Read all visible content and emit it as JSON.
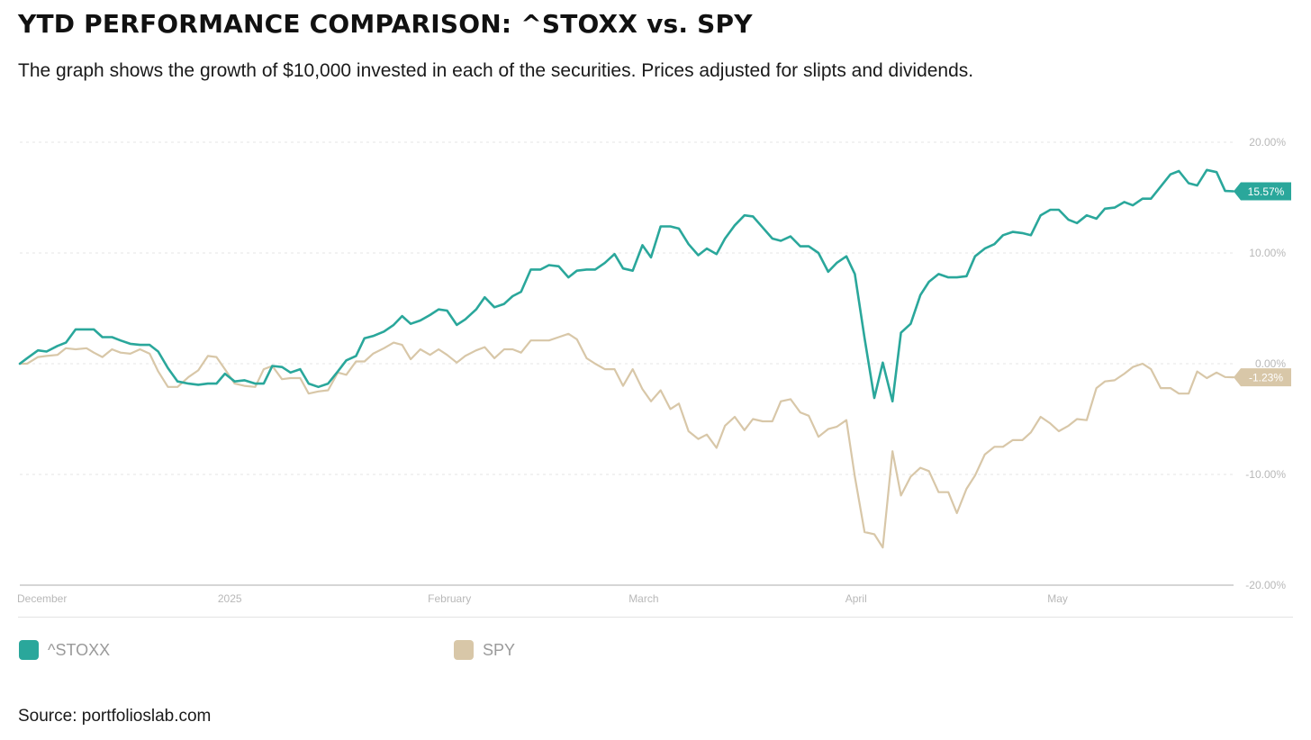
{
  "header": {
    "title": "YTD PERFORMANCE COMPARISON: ^STOXX vs. SPY",
    "subtitle": "The graph shows the growth of $10,000 invested in each of the securities. Prices adjusted for slipts and dividends."
  },
  "footer": {
    "source": "Source: portfolioslab.com"
  },
  "chart_data": {
    "type": "line",
    "ylim": [
      -20,
      20
    ],
    "y_ticks": [
      20,
      10,
      0,
      -10,
      -20
    ],
    "y_tick_labels": [
      "20.00%",
      "10.00%",
      "0.00%",
      "-10.00%",
      "-20.00%"
    ],
    "x_range": [
      0,
      100
    ],
    "x_ticks": [
      {
        "label": "December",
        "x": 0
      },
      {
        "label": "2025",
        "x": 17.3
      },
      {
        "label": "February",
        "x": 35.4
      },
      {
        "label": "March",
        "x": 51.4
      },
      {
        "label": "April",
        "x": 68.9
      },
      {
        "label": "May",
        "x": 85.5
      }
    ],
    "grid": true,
    "legend": "bottom-left",
    "series": [
      {
        "name": "^STOXX",
        "color": "#2aa79b",
        "end_label": "15.57%",
        "points": [
          [
            0,
            0
          ],
          [
            0.6,
            0.5
          ],
          [
            1.5,
            1.2
          ],
          [
            2.2,
            1.1
          ],
          [
            3.1,
            1.6
          ],
          [
            3.8,
            1.9
          ],
          [
            4.6,
            3.1
          ],
          [
            5.5,
            3.1
          ],
          [
            6.1,
            3.1
          ],
          [
            6.8,
            2.4
          ],
          [
            7.6,
            2.4
          ],
          [
            8.3,
            2.1
          ],
          [
            9.1,
            1.8
          ],
          [
            9.9,
            1.7
          ],
          [
            10.7,
            1.7
          ],
          [
            11.4,
            1.1
          ],
          [
            12.2,
            -0.4
          ],
          [
            13,
            -1.6
          ],
          [
            13.9,
            -1.8
          ],
          [
            14.7,
            -1.9
          ],
          [
            15.5,
            -1.8
          ],
          [
            16.2,
            -1.8
          ],
          [
            16.9,
            -0.9
          ],
          [
            17.7,
            -1.6
          ],
          [
            18.5,
            -1.5
          ],
          [
            19.4,
            -1.8
          ],
          [
            20.1,
            -1.8
          ],
          [
            20.8,
            -0.2
          ],
          [
            21.6,
            -0.3
          ],
          [
            22.3,
            -0.8
          ],
          [
            23.1,
            -0.5
          ],
          [
            23.8,
            -1.8
          ],
          [
            24.6,
            -2.1
          ],
          [
            25.4,
            -1.8
          ],
          [
            26.2,
            -0.7
          ],
          [
            26.9,
            0.3
          ],
          [
            27.7,
            0.7
          ],
          [
            28.4,
            2.3
          ],
          [
            29.1,
            2.5
          ],
          [
            30,
            2.9
          ],
          [
            30.8,
            3.5
          ],
          [
            31.5,
            4.3
          ],
          [
            32.2,
            3.6
          ],
          [
            33,
            3.9
          ],
          [
            33.8,
            4.4
          ],
          [
            34.5,
            4.9
          ],
          [
            35.2,
            4.8
          ],
          [
            36,
            3.5
          ],
          [
            36.7,
            4
          ],
          [
            37.6,
            4.9
          ],
          [
            38.3,
            6
          ],
          [
            39.1,
            5.1
          ],
          [
            39.9,
            5.4
          ],
          [
            40.6,
            6.1
          ],
          [
            41.3,
            6.5
          ],
          [
            42.1,
            8.5
          ],
          [
            42.9,
            8.5
          ],
          [
            43.6,
            8.9
          ],
          [
            44.4,
            8.8
          ],
          [
            45.2,
            7.8
          ],
          [
            45.9,
            8.4
          ],
          [
            46.7,
            8.5
          ],
          [
            47.4,
            8.5
          ],
          [
            48.2,
            9.1
          ],
          [
            49,
            9.9
          ],
          [
            49.7,
            8.6
          ],
          [
            50.5,
            8.4
          ],
          [
            51.3,
            10.7
          ],
          [
            52,
            9.6
          ],
          [
            52.8,
            12.4
          ],
          [
            53.6,
            12.4
          ],
          [
            54.3,
            12.2
          ],
          [
            55.1,
            10.8
          ],
          [
            55.9,
            9.8
          ],
          [
            56.6,
            10.4
          ],
          [
            57.4,
            9.9
          ],
          [
            58.1,
            11.3
          ],
          [
            58.9,
            12.5
          ],
          [
            59.7,
            13.4
          ],
          [
            60.4,
            13.3
          ],
          [
            61.2,
            12.3
          ],
          [
            62,
            11.3
          ],
          [
            62.7,
            11.1
          ],
          [
            63.5,
            11.5
          ],
          [
            64.3,
            10.6
          ],
          [
            65,
            10.6
          ],
          [
            65.8,
            10
          ],
          [
            66.6,
            8.3
          ],
          [
            67.3,
            9.1
          ],
          [
            68.1,
            9.7
          ],
          [
            68.8,
            8.1
          ],
          [
            69.6,
            2.3
          ],
          [
            70.4,
            -3.1
          ],
          [
            71.1,
            0.1
          ],
          [
            71.9,
            -3.4
          ],
          [
            72.6,
            2.8
          ],
          [
            73.4,
            3.6
          ],
          [
            74.2,
            6.2
          ],
          [
            74.9,
            7.4
          ],
          [
            75.7,
            8.1
          ],
          [
            76.5,
            7.8
          ],
          [
            77.2,
            7.8
          ],
          [
            78,
            7.9
          ],
          [
            78.7,
            9.7
          ],
          [
            79.5,
            10.4
          ],
          [
            80.3,
            10.8
          ],
          [
            81,
            11.6
          ],
          [
            81.8,
            11.9
          ],
          [
            82.6,
            11.8
          ],
          [
            83.3,
            11.6
          ],
          [
            84.1,
            13.4
          ],
          [
            84.9,
            13.9
          ],
          [
            85.6,
            13.9
          ],
          [
            86.4,
            13
          ],
          [
            87.1,
            12.7
          ],
          [
            87.9,
            13.4
          ],
          [
            88.7,
            13.1
          ],
          [
            89.4,
            14
          ],
          [
            90.2,
            14.1
          ],
          [
            91,
            14.6
          ],
          [
            91.7,
            14.3
          ],
          [
            92.5,
            14.9
          ],
          [
            93.2,
            14.9
          ],
          [
            94,
            16
          ],
          [
            94.8,
            17.1
          ],
          [
            95.5,
            17.4
          ],
          [
            96.3,
            16.3
          ],
          [
            97,
            16.1
          ],
          [
            97.8,
            17.5
          ],
          [
            98.6,
            17.3
          ],
          [
            99.3,
            15.6
          ],
          [
            100,
            15.57
          ]
        ]
      },
      {
        "name": "SPY",
        "color": "#d8c7a8",
        "end_label": "-1.23%",
        "points": [
          [
            0,
            0
          ],
          [
            0.6,
            0
          ],
          [
            1.5,
            0.6
          ],
          [
            2.2,
            0.7
          ],
          [
            3.1,
            0.8
          ],
          [
            3.8,
            1.4
          ],
          [
            4.6,
            1.3
          ],
          [
            5.5,
            1.4
          ],
          [
            6.1,
            1
          ],
          [
            6.8,
            0.6
          ],
          [
            7.6,
            1.3
          ],
          [
            8.3,
            1
          ],
          [
            9.1,
            0.9
          ],
          [
            9.9,
            1.3
          ],
          [
            10.7,
            0.9
          ],
          [
            11.4,
            -0.7
          ],
          [
            12.2,
            -2.1
          ],
          [
            13,
            -2.1
          ],
          [
            13.9,
            -1.2
          ],
          [
            14.7,
            -0.6
          ],
          [
            15.5,
            0.7
          ],
          [
            16.2,
            0.6
          ],
          [
            16.9,
            -0.5
          ],
          [
            17.7,
            -1.8
          ],
          [
            18.5,
            -2
          ],
          [
            19.4,
            -2.1
          ],
          [
            20.1,
            -0.5
          ],
          [
            20.8,
            -0.2
          ],
          [
            21.6,
            -1.4
          ],
          [
            22.3,
            -1.3
          ],
          [
            23.1,
            -1.3
          ],
          [
            23.8,
            -2.7
          ],
          [
            24.6,
            -2.5
          ],
          [
            25.4,
            -2.4
          ],
          [
            26.2,
            -0.8
          ],
          [
            26.9,
            -1
          ],
          [
            27.7,
            0.2
          ],
          [
            28.4,
            0.2
          ],
          [
            29.1,
            0.9
          ],
          [
            30,
            1.4
          ],
          [
            30.8,
            1.9
          ],
          [
            31.5,
            1.7
          ],
          [
            32.2,
            0.4
          ],
          [
            33,
            1.3
          ],
          [
            33.8,
            0.8
          ],
          [
            34.5,
            1.3
          ],
          [
            35.2,
            0.8
          ],
          [
            36,
            0.1
          ],
          [
            36.7,
            0.7
          ],
          [
            37.6,
            1.2
          ],
          [
            38.3,
            1.5
          ],
          [
            39.1,
            0.5
          ],
          [
            39.9,
            1.3
          ],
          [
            40.6,
            1.3
          ],
          [
            41.3,
            1
          ],
          [
            42.1,
            2.1
          ],
          [
            42.9,
            2.1
          ],
          [
            43.6,
            2.1
          ],
          [
            44.4,
            2.4
          ],
          [
            45.2,
            2.7
          ],
          [
            45.9,
            2.2
          ],
          [
            46.7,
            0.5
          ],
          [
            47.4,
            0
          ],
          [
            48.2,
            -0.5
          ],
          [
            49,
            -0.5
          ],
          [
            49.7,
            -2
          ],
          [
            50.5,
            -0.5
          ],
          [
            51.3,
            -2.3
          ],
          [
            52,
            -3.4
          ],
          [
            52.8,
            -2.4
          ],
          [
            53.6,
            -4.1
          ],
          [
            54.3,
            -3.6
          ],
          [
            55.1,
            -6.1
          ],
          [
            55.9,
            -6.8
          ],
          [
            56.6,
            -6.4
          ],
          [
            57.4,
            -7.6
          ],
          [
            58.1,
            -5.6
          ],
          [
            58.9,
            -4.8
          ],
          [
            59.7,
            -6
          ],
          [
            60.4,
            -5
          ],
          [
            61.2,
            -5.2
          ],
          [
            62,
            -5.2
          ],
          [
            62.7,
            -3.4
          ],
          [
            63.5,
            -3.2
          ],
          [
            64.3,
            -4.4
          ],
          [
            65,
            -4.7
          ],
          [
            65.8,
            -6.6
          ],
          [
            66.6,
            -5.9
          ],
          [
            67.3,
            -5.7
          ],
          [
            68.1,
            -5.1
          ],
          [
            68.8,
            -10.2
          ],
          [
            69.6,
            -15.2
          ],
          [
            70.4,
            -15.4
          ],
          [
            71.1,
            -16.6
          ],
          [
            71.9,
            -7.9
          ],
          [
            72.6,
            -11.9
          ],
          [
            73.4,
            -10.2
          ],
          [
            74.2,
            -9.4
          ],
          [
            74.9,
            -9.7
          ],
          [
            75.7,
            -11.6
          ],
          [
            76.5,
            -11.6
          ],
          [
            77.2,
            -13.5
          ],
          [
            78,
            -11.3
          ],
          [
            78.7,
            -10.1
          ],
          [
            79.5,
            -8.2
          ],
          [
            80.3,
            -7.5
          ],
          [
            81,
            -7.5
          ],
          [
            81.8,
            -6.9
          ],
          [
            82.6,
            -6.9
          ],
          [
            83.3,
            -6.2
          ],
          [
            84.1,
            -4.8
          ],
          [
            84.9,
            -5.4
          ],
          [
            85.6,
            -6.1
          ],
          [
            86.4,
            -5.6
          ],
          [
            87.1,
            -5
          ],
          [
            87.9,
            -5.1
          ],
          [
            88.7,
            -2.2
          ],
          [
            89.4,
            -1.6
          ],
          [
            90.2,
            -1.5
          ],
          [
            91,
            -0.9
          ],
          [
            91.7,
            -0.3
          ],
          [
            92.5,
            0
          ],
          [
            93.2,
            -0.5
          ],
          [
            94,
            -2.2
          ],
          [
            94.8,
            -2.2
          ],
          [
            95.5,
            -2.7
          ],
          [
            96.3,
            -2.7
          ],
          [
            97,
            -0.7
          ],
          [
            97.8,
            -1.3
          ],
          [
            98.6,
            -0.8
          ],
          [
            99.3,
            -1.2
          ],
          [
            100,
            -1.23
          ]
        ]
      }
    ]
  }
}
